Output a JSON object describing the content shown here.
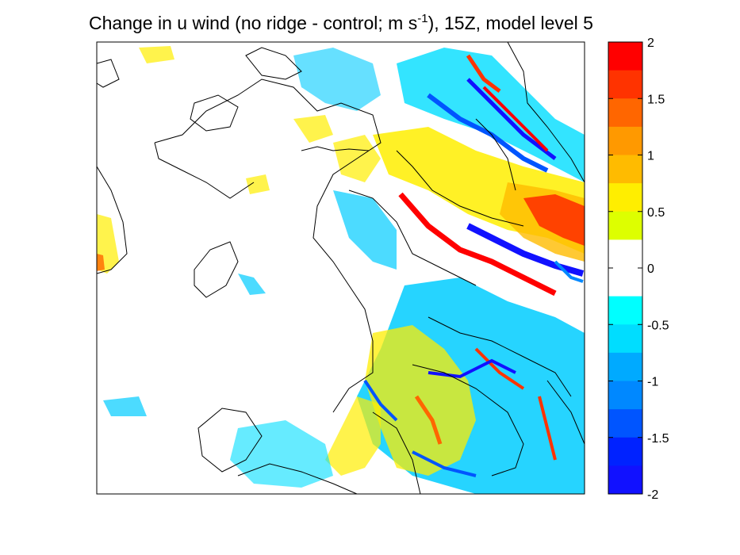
{
  "chart_data": {
    "type": "heatmap",
    "title": {
      "main": "Change in u wind (no ridge - control; m s",
      "superscript": "-1",
      "suffix": "), 15Z, model level 5"
    },
    "xlabel": "",
    "ylabel": "",
    "grid": false,
    "colorbar": {
      "placement": "right",
      "range": [
        -2,
        2
      ],
      "step": 0.25,
      "ticks": [
        {
          "value": 2,
          "label": "2"
        },
        {
          "value": 1.5,
          "label": "1.5"
        },
        {
          "value": 1,
          "label": "1"
        },
        {
          "value": 0.5,
          "label": "0.5"
        },
        {
          "value": 0,
          "label": "0"
        },
        {
          "value": -0.5,
          "label": "-0.5"
        },
        {
          "value": -1,
          "label": "-1"
        },
        {
          "value": -1.5,
          "label": "-1.5"
        },
        {
          "value": -2,
          "label": "-2"
        }
      ],
      "levels": [
        {
          "from": 1.75,
          "to": 2.0,
          "color": "#ff0000"
        },
        {
          "from": 1.5,
          "to": 1.75,
          "color": "#ff3300"
        },
        {
          "from": 1.25,
          "to": 1.5,
          "color": "#ff6600"
        },
        {
          "from": 1.0,
          "to": 1.25,
          "color": "#ff9900"
        },
        {
          "from": 0.75,
          "to": 1.0,
          "color": "#ffbb00"
        },
        {
          "from": 0.5,
          "to": 0.75,
          "color": "#ffee00"
        },
        {
          "from": 0.25,
          "to": 0.5,
          "color": "#ddff00"
        },
        {
          "from": -0.25,
          "to": 0.25,
          "color": "#ffffff"
        },
        {
          "from": -0.5,
          "to": -0.25,
          "color": "#00ffff"
        },
        {
          "from": -0.75,
          "to": -0.5,
          "color": "#00ddff"
        },
        {
          "from": -1.0,
          "to": -0.75,
          "color": "#00aaff"
        },
        {
          "from": -1.25,
          "to": -1.0,
          "color": "#0088ff"
        },
        {
          "from": -1.5,
          "to": -1.25,
          "color": "#0055ff"
        },
        {
          "from": -1.75,
          "to": -1.5,
          "color": "#0022ff"
        },
        {
          "from": -2.0,
          "to": -1.75,
          "color": "#1111ff"
        }
      ]
    }
  }
}
